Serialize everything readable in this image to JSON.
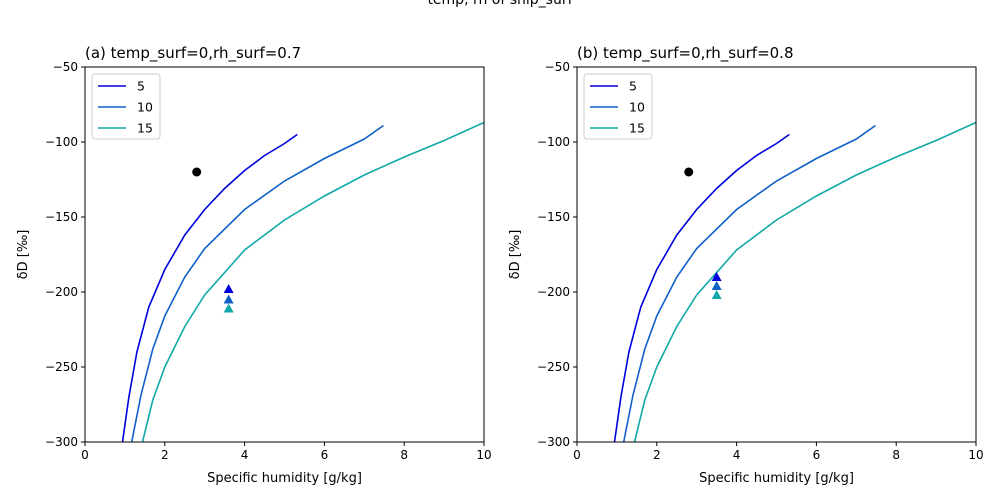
{
  "figure": {
    "suptitle": "temp, rh of ship_surf"
  },
  "chart_data": [
    {
      "type": "line",
      "title": "(a) temp_surf=0,rh_surf=0.7",
      "xlabel": "Specific humidity [g/kg]",
      "ylabel": "δD [‰]",
      "xlim": [
        0,
        10
      ],
      "ylim": [
        -300,
        -50
      ],
      "xticks": [
        "0",
        "2",
        "4",
        "6",
        "8",
        "10"
      ],
      "yticks": [
        "−50",
        "−100",
        "−150",
        "−200",
        "−250",
        "−300"
      ],
      "grid": false,
      "legend": "top-left",
      "series": [
        {
          "name": "5",
          "color": "#0000dd",
          "x": [
            0.94,
            1.1,
            1.3,
            1.6,
            2.0,
            2.5,
            3.0,
            3.5,
            4.0,
            4.5,
            5.0,
            5.32
          ],
          "y": [
            -300,
            -270,
            -240,
            -210,
            -185,
            -162,
            -145,
            -131,
            -119,
            -109,
            -101,
            -95
          ]
        },
        {
          "name": "10",
          "color": "#1060c8",
          "x": [
            1.17,
            1.4,
            1.7,
            2.0,
            2.5,
            3.0,
            4.0,
            5.0,
            6.0,
            7.0,
            7.48
          ],
          "y": [
            -300,
            -269,
            -238,
            -216,
            -190,
            -171,
            -145,
            -126,
            -111,
            -98,
            -89
          ]
        },
        {
          "name": "15",
          "color": "#10a8a8",
          "x": [
            1.44,
            1.7,
            2.0,
            2.5,
            3.0,
            4.0,
            5.0,
            6.0,
            7.0,
            8.0,
            9.0,
            10.0
          ],
          "y": [
            -300,
            -272,
            -250,
            -223,
            -202,
            -172,
            -152,
            -136,
            -122,
            -110,
            -99,
            -87
          ]
        }
      ],
      "points": [
        {
          "label": "ship_surf",
          "marker": "circle",
          "color": "#000000",
          "x": 2.8,
          "y": -120
        }
      ],
      "markers": [
        {
          "series": "5",
          "marker": "triangle",
          "color": "#0000dd",
          "x": 3.6,
          "y": -198
        },
        {
          "series": "10",
          "marker": "triangle",
          "color": "#1060c8",
          "x": 3.6,
          "y": -205
        },
        {
          "series": "15",
          "marker": "triangle",
          "color": "#10a8a8",
          "x": 3.6,
          "y": -211
        }
      ]
    },
    {
      "type": "line",
      "title": "(b) temp_surf=0,rh_surf=0.8",
      "xlabel": "Specific humidity [g/kg]",
      "ylabel": "δD [‰]",
      "xlim": [
        0,
        10
      ],
      "ylim": [
        -300,
        -50
      ],
      "xticks": [
        "0",
        "2",
        "4",
        "6",
        "8",
        "10"
      ],
      "yticks": [
        "−50",
        "−100",
        "−150",
        "−200",
        "−250",
        "−300"
      ],
      "grid": false,
      "legend": "top-left",
      "series": [
        {
          "name": "5",
          "color": "#0000dd",
          "x": [
            0.94,
            1.1,
            1.3,
            1.6,
            2.0,
            2.5,
            3.0,
            3.5,
            4.0,
            4.5,
            5.0,
            5.32
          ],
          "y": [
            -300,
            -270,
            -240,
            -210,
            -185,
            -162,
            -145,
            -131,
            -119,
            -109,
            -101,
            -95
          ]
        },
        {
          "name": "10",
          "color": "#1060c8",
          "x": [
            1.17,
            1.4,
            1.7,
            2.0,
            2.5,
            3.0,
            4.0,
            5.0,
            6.0,
            7.0,
            7.48
          ],
          "y": [
            -300,
            -269,
            -238,
            -216,
            -190,
            -171,
            -145,
            -126,
            -111,
            -98,
            -89
          ]
        },
        {
          "name": "15",
          "color": "#10a8a8",
          "x": [
            1.44,
            1.7,
            2.0,
            2.5,
            3.0,
            4.0,
            5.0,
            6.0,
            7.0,
            8.0,
            9.0,
            10.0
          ],
          "y": [
            -300,
            -272,
            -250,
            -223,
            -202,
            -172,
            -152,
            -136,
            -122,
            -110,
            -99,
            -87
          ]
        }
      ],
      "points": [
        {
          "label": "ship_surf",
          "marker": "circle",
          "color": "#000000",
          "x": 2.8,
          "y": -120
        }
      ],
      "markers": [
        {
          "series": "5",
          "marker": "triangle",
          "color": "#0000dd",
          "x": 3.5,
          "y": -190
        },
        {
          "series": "10",
          "marker": "triangle",
          "color": "#1060c8",
          "x": 3.5,
          "y": -196
        },
        {
          "series": "15",
          "marker": "triangle",
          "color": "#10a8a8",
          "x": 3.5,
          "y": -202
        }
      ]
    }
  ]
}
